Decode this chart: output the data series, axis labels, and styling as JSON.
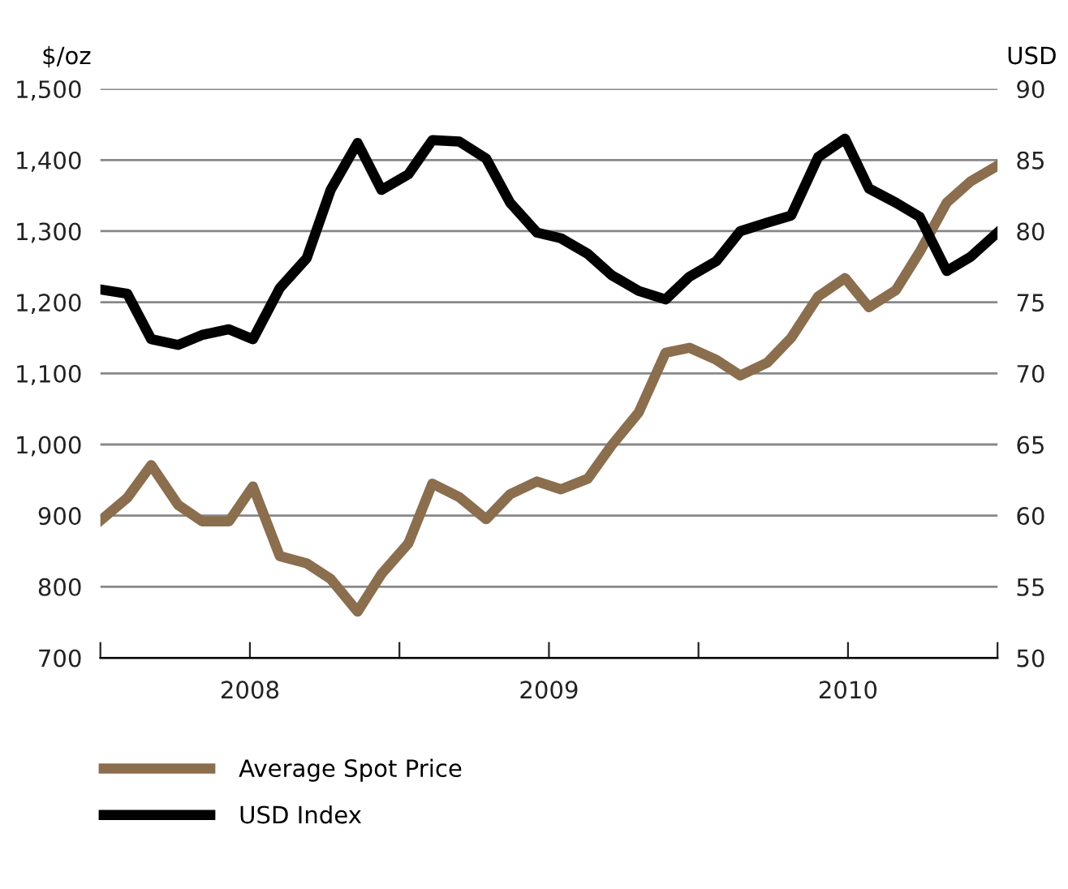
{
  "chart_data": {
    "type": "line",
    "ylabel": "$/oz",
    "y2label": "USD",
    "x": [
      2007.5,
      2007.59,
      2007.67,
      2007.76,
      2007.84,
      2007.93,
      2008.01,
      2008.1,
      2008.19,
      2008.27,
      2008.36,
      2008.44,
      2008.53,
      2008.61,
      2008.7,
      2008.79,
      2008.87,
      2008.96,
      2009.04,
      2009.13,
      2009.21,
      2009.3,
      2009.39,
      2009.47,
      2009.56,
      2009.64,
      2009.73,
      2009.81,
      2009.9,
      2009.99,
      2010.07,
      2010.16,
      2010.24,
      2010.33,
      2010.41,
      2010.5
    ],
    "series": [
      {
        "name": "Average Spot Price",
        "color": "#8b6e4e",
        "values": [
          893,
          925,
          971,
          915,
          892,
          892,
          941,
          843,
          833,
          811,
          765,
          818,
          861,
          945,
          926,
          895,
          930,
          948,
          937,
          952,
          999,
          1045,
          1129,
          1136,
          1119,
          1097,
          1115,
          1150,
          1208,
          1234,
          1193,
          1217,
          1271,
          1340,
          1370,
          1392
        ]
      },
      {
        "name": "USD Index",
        "color": "#000000",
        "axis": "y2",
        "values": [
          75.9,
          75.6,
          72.4,
          72.0,
          72.7,
          73.1,
          72.4,
          76.0,
          78.1,
          82.9,
          86.2,
          82.9,
          84.0,
          86.4,
          86.3,
          85.1,
          82.0,
          79.9,
          79.5,
          78.4,
          76.9,
          75.8,
          75.2,
          76.8,
          77.9,
          80.0,
          80.6,
          81.1,
          85.2,
          86.5,
          83.0,
          82.0,
          81.0,
          77.2,
          78.2,
          79.9
        ]
      }
    ],
    "xlim": [
      2007.5,
      2010.5
    ],
    "xticks": [
      {
        "value": 2007.5,
        "label": null
      },
      {
        "value": 2008,
        "label": "2008"
      },
      {
        "value": 2008.5,
        "label": null
      },
      {
        "value": 2009,
        "label": "2009"
      },
      {
        "value": 2009.5,
        "label": null
      },
      {
        "value": 2010,
        "label": "2010"
      },
      {
        "value": 2010.5,
        "label": null
      }
    ],
    "ylim": [
      700,
      1500
    ],
    "yticks": [
      {
        "value": 700,
        "label": "700"
      },
      {
        "value": 800,
        "label": "800"
      },
      {
        "value": 900,
        "label": "900"
      },
      {
        "value": 1000,
        "label": "1,000"
      },
      {
        "value": 1100,
        "label": "1,100"
      },
      {
        "value": 1200,
        "label": "1,200"
      },
      {
        "value": 1300,
        "label": "1,300"
      },
      {
        "value": 1400,
        "label": "1,400"
      },
      {
        "value": 1500,
        "label": "1,500"
      }
    ],
    "y2lim": [
      50,
      90
    ],
    "y2ticks": [
      50,
      55,
      60,
      65,
      70,
      75,
      80,
      85,
      90
    ],
    "grid": "y",
    "legend": "bottom",
    "marker": "none",
    "line_style": "solid"
  }
}
